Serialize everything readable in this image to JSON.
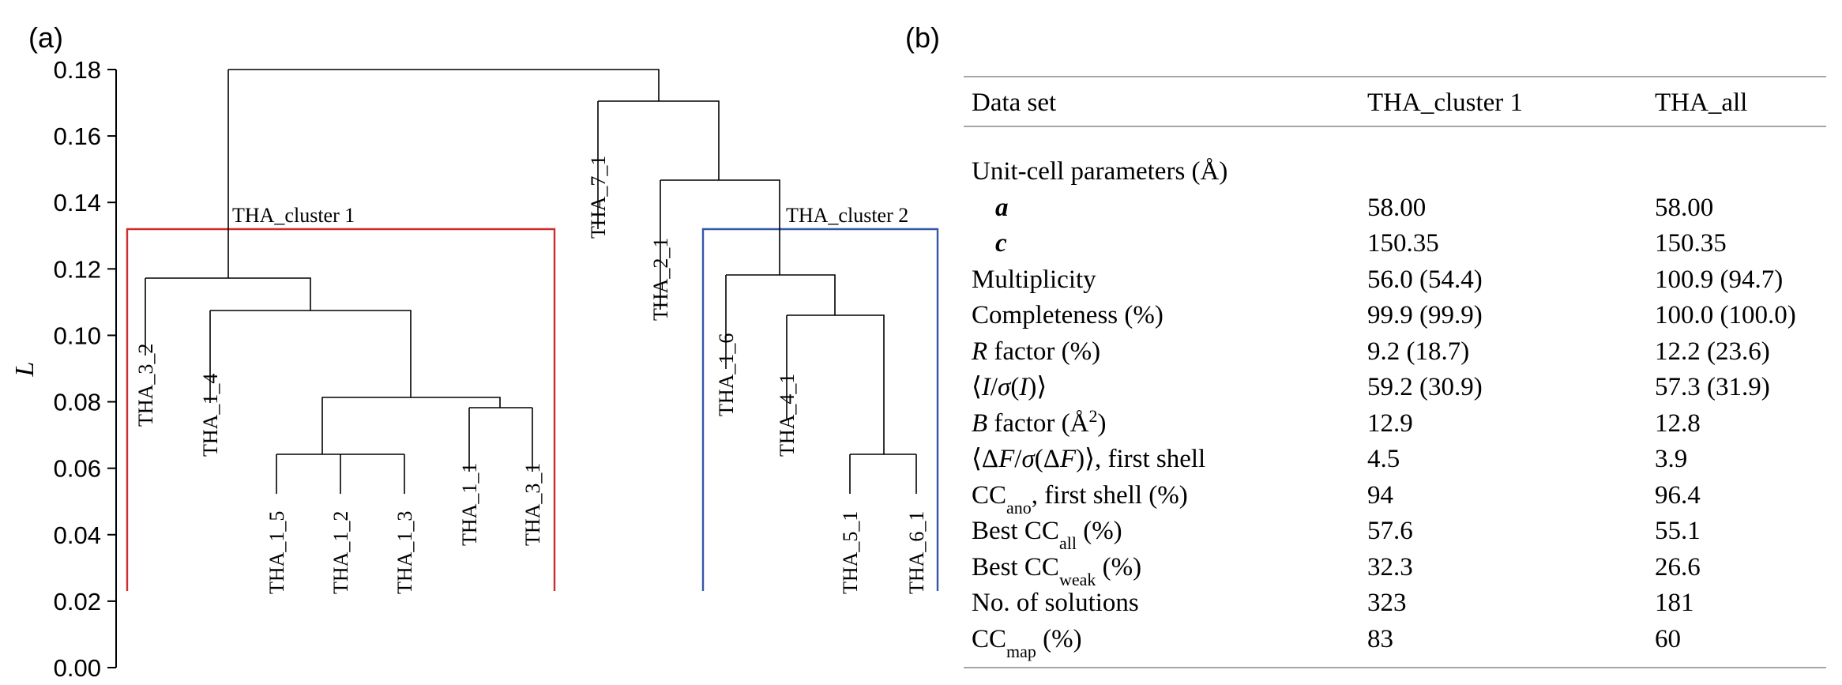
{
  "panel_a": {
    "label": "(a)",
    "y_axis_label": "L",
    "y_ticks": [
      "0.00",
      "0.02",
      "0.04",
      "0.06",
      "0.08",
      "0.10",
      "0.12",
      "0.14",
      "0.16",
      "0.18"
    ],
    "cluster_1_label": "THA_cluster 1",
    "cluster_2_label": "THA_cluster 2",
    "cluster_1_color": "#cc2e2e",
    "cluster_2_color": "#3557a8",
    "leaves": [
      "THA_3_2",
      "THA_1_4",
      "THA_1_5",
      "THA_1_2",
      "THA_1_3",
      "THA_1_1",
      "THA_3_1",
      "THA_7_1",
      "THA_2_1",
      "THA_1_6",
      "THA_4_1",
      "THA_5_1",
      "THA_6_1"
    ]
  },
  "chart_data": {
    "type": "dendrogram",
    "ylabel": "L",
    "ylim": [
      0,
      0.18
    ],
    "leaves": [
      "THA_3_2",
      "THA_1_4",
      "THA_1_5",
      "THA_1_2",
      "THA_1_3",
      "THA_1_1",
      "THA_3_1",
      "THA_7_1",
      "THA_2_1",
      "THA_1_6",
      "THA_4_1",
      "THA_5_1",
      "THA_6_1"
    ],
    "merges": [
      {
        "nodes": [
          "THA_1_5",
          "THA_1_2",
          "THA_1_3"
        ],
        "height": 0.063
      },
      {
        "nodes": [
          "THA_1_1",
          "THA_3_1"
        ],
        "height": 0.077
      },
      {
        "nodes": [
          "{THA_1_5,THA_1_2,THA_1_3}",
          "{THA_1_1,THA_3_1}"
        ],
        "height": 0.08
      },
      {
        "nodes": [
          "THA_1_4",
          "{THA_1_5..THA_3_1}"
        ],
        "height": 0.106
      },
      {
        "nodes": [
          "THA_3_2",
          "{THA_1_4..THA_3_1}"
        ],
        "height": 0.116
      },
      {
        "nodes": [
          "THA_5_1",
          "THA_6_1"
        ],
        "height": 0.063
      },
      {
        "nodes": [
          "THA_4_1",
          "{THA_5_1,THA_6_1}"
        ],
        "height": 0.105
      },
      {
        "nodes": [
          "THA_1_6",
          "{THA_4_1..THA_6_1}"
        ],
        "height": 0.117
      },
      {
        "nodes": [
          "THA_2_1",
          "{THA_1_6..THA_6_1}"
        ],
        "height": 0.145
      },
      {
        "nodes": [
          "THA_7_1",
          "{THA_2_1..THA_6_1}"
        ],
        "height": 0.17
      },
      {
        "nodes": [
          "THA_cluster 1",
          "{THA_7_1..THA_6_1}"
        ],
        "height": 0.18
      }
    ],
    "clusters": [
      {
        "name": "THA_cluster 1",
        "cut_height": 0.131
      },
      {
        "name": "THA_cluster 2",
        "cut_height": 0.131
      }
    ]
  },
  "panel_b": {
    "label": "(b)",
    "headers": [
      "Data set",
      "THA_cluster 1",
      "THA_all"
    ],
    "section_title": "Unit-cell parameters (Å)",
    "rows": [
      {
        "label": "a",
        "c1": "58.00",
        "c2": "58.00"
      },
      {
        "label": "c",
        "c1": "150.35",
        "c2": "150.35"
      },
      {
        "label": "Multiplicity",
        "c1": "56.0 (54.4)",
        "c2": "100.9 (94.7)"
      },
      {
        "label": "Completeness (%)",
        "c1": "99.9 (99.9)",
        "c2": "100.0 (100.0)"
      },
      {
        "label": "R factor (%)",
        "c1": "9.2 (18.7)",
        "c2": "12.2 (23.6)"
      },
      {
        "label": "⟨I/σ(I)⟩",
        "c1": "59.2 (30.9)",
        "c2": "57.3 (31.9)"
      },
      {
        "label": "B factor (Å2)",
        "c1": "12.9",
        "c2": "12.8"
      },
      {
        "label": "⟨ΔF/σ(ΔF)⟩, first shell",
        "c1": "4.5",
        "c2": "3.9"
      },
      {
        "label": "CCano, first shell (%)",
        "c1": "94",
        "c2": "96.4"
      },
      {
        "label": "Best CCall (%)",
        "c1": "57.6",
        "c2": "55.1"
      },
      {
        "label": "Best CCweak (%)",
        "c1": "32.3",
        "c2": "26.6"
      },
      {
        "label": "No. of solutions",
        "c1": "323",
        "c2": "181"
      },
      {
        "label": "CCmap (%)",
        "c1": "83",
        "c2": "60"
      }
    ]
  }
}
